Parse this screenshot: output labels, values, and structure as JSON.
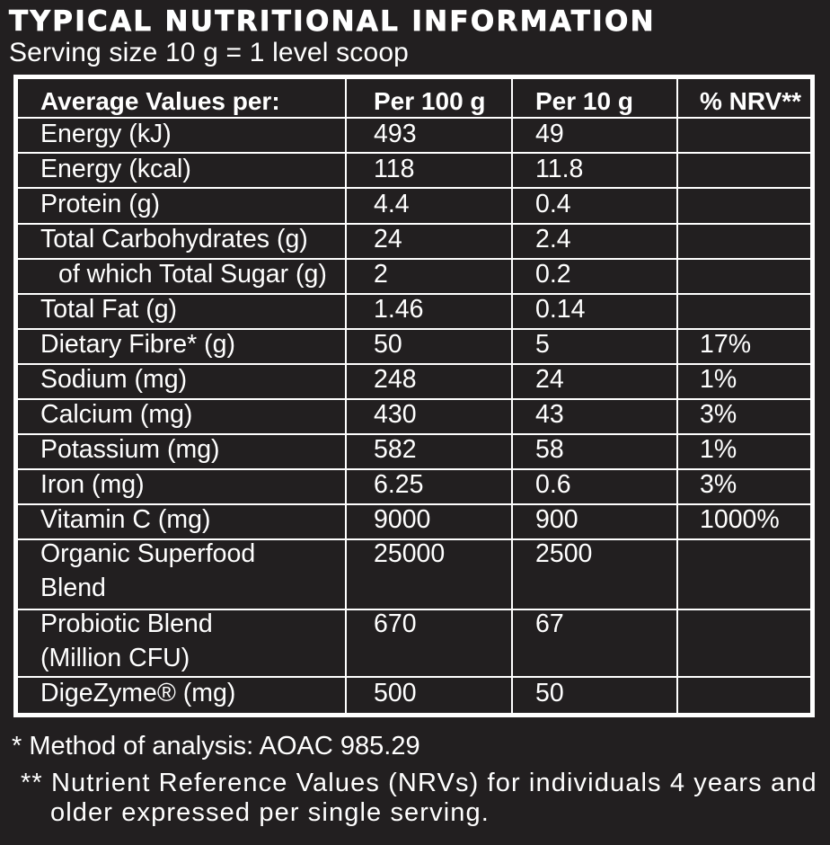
{
  "page": {
    "background_color": "#221f20",
    "text_color": "#ffffff",
    "title": "TYPICAL NUTRITIONAL INFORMATION",
    "subtitle": "Serving size 10 g = 1 level scoop"
  },
  "table": {
    "border_color": "#ffffff",
    "header": {
      "col1": "Average Values per:",
      "col2": "Per 100 g",
      "col3": "Per 10 g",
      "col4": "% NRV**"
    },
    "rows": [
      {
        "label": "Energy (kJ)",
        "per100g": "493",
        "per10g": "49",
        "nrv": ""
      },
      {
        "label": "Energy (kcal)",
        "per100g": "118",
        "per10g": "11.8",
        "nrv": ""
      },
      {
        "label": "Protein (g)",
        "per100g": "4.4",
        "per10g": "0.4",
        "nrv": ""
      },
      {
        "label": "Total Carbohydrates (g)",
        "per100g": "24",
        "per10g": "2.4",
        "nrv": ""
      },
      {
        "label": "of which Total Sugar (g)",
        "per100g": "2",
        "per10g": "0.2",
        "nrv": "",
        "indent": true
      },
      {
        "label": "Total Fat (g)",
        "per100g": "1.46",
        "per10g": "0.14",
        "nrv": ""
      },
      {
        "label": "Dietary Fibre* (g)",
        "per100g": "50",
        "per10g": "5",
        "nrv": "17%"
      },
      {
        "label": "Sodium (mg)",
        "per100g": "248",
        "per10g": "24",
        "nrv": "1%"
      },
      {
        "label": "Calcium (mg)",
        "per100g": "430",
        "per10g": "43",
        "nrv": "3%"
      },
      {
        "label": "Potassium (mg)",
        "per100g": "582",
        "per10g": "58",
        "nrv": "1%"
      },
      {
        "label": "Iron (mg)",
        "per100g": "6.25",
        "per10g": "0.6",
        "nrv": "3%"
      },
      {
        "label": "Vitamin C (mg)",
        "per100g": "9000",
        "per10g": "900",
        "nrv": "1000%"
      },
      {
        "label": "Organic Superfood\nBlend",
        "per100g": "25000",
        "per10g": "2500",
        "nrv": "",
        "twoline": true
      },
      {
        "label": "Probiotic Blend\n(Million CFU)",
        "per100g": "670",
        "per10g": "67",
        "nrv": "",
        "twoline": true
      },
      {
        "label": "DigeZyme® (mg)",
        "per100g": "500",
        "per10g": "50",
        "nrv": ""
      }
    ]
  },
  "footnotes": {
    "method": "* Method of analysis: AOAC 985.29",
    "nrv": "** Nutrient Reference Values (NRVs) for individuals 4 years and\nolder expressed per single serving."
  }
}
